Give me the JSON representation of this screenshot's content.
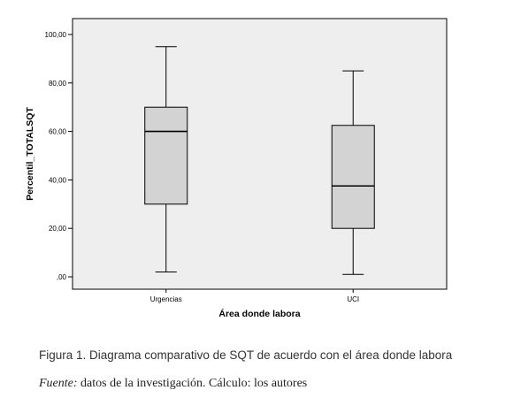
{
  "chart_data": {
    "type": "boxplot",
    "xlabel": "Área donde labora",
    "ylabel": "Percentil_TOTALSQT",
    "ylim": [
      0,
      100
    ],
    "yticks": [
      0,
      20,
      40,
      60,
      80,
      100
    ],
    "ytick_labels": [
      ",00",
      "20,00",
      "40,00",
      "60,00",
      "80,00",
      "100,00"
    ],
    "grid": false,
    "categories": [
      "Urgencias",
      "UCI"
    ],
    "boxes": [
      {
        "category": "Urgencias",
        "min": 2,
        "q1": 30,
        "median": 60,
        "q3": 70,
        "max": 95
      },
      {
        "category": "UCI",
        "min": 1,
        "q1": 20,
        "median": 37.5,
        "q3": 62.5,
        "max": 85
      }
    ],
    "colors": {
      "plot_bg": "#eeeeee",
      "box_fill": "#d3d3d3",
      "line": "#000000"
    }
  },
  "caption": "Figura 1. Diagrama comparativo de SQT de acuerdo con el área donde labora",
  "source": {
    "label": "Fuente:",
    "text": " datos de la investigación. Cálculo: los autores"
  }
}
